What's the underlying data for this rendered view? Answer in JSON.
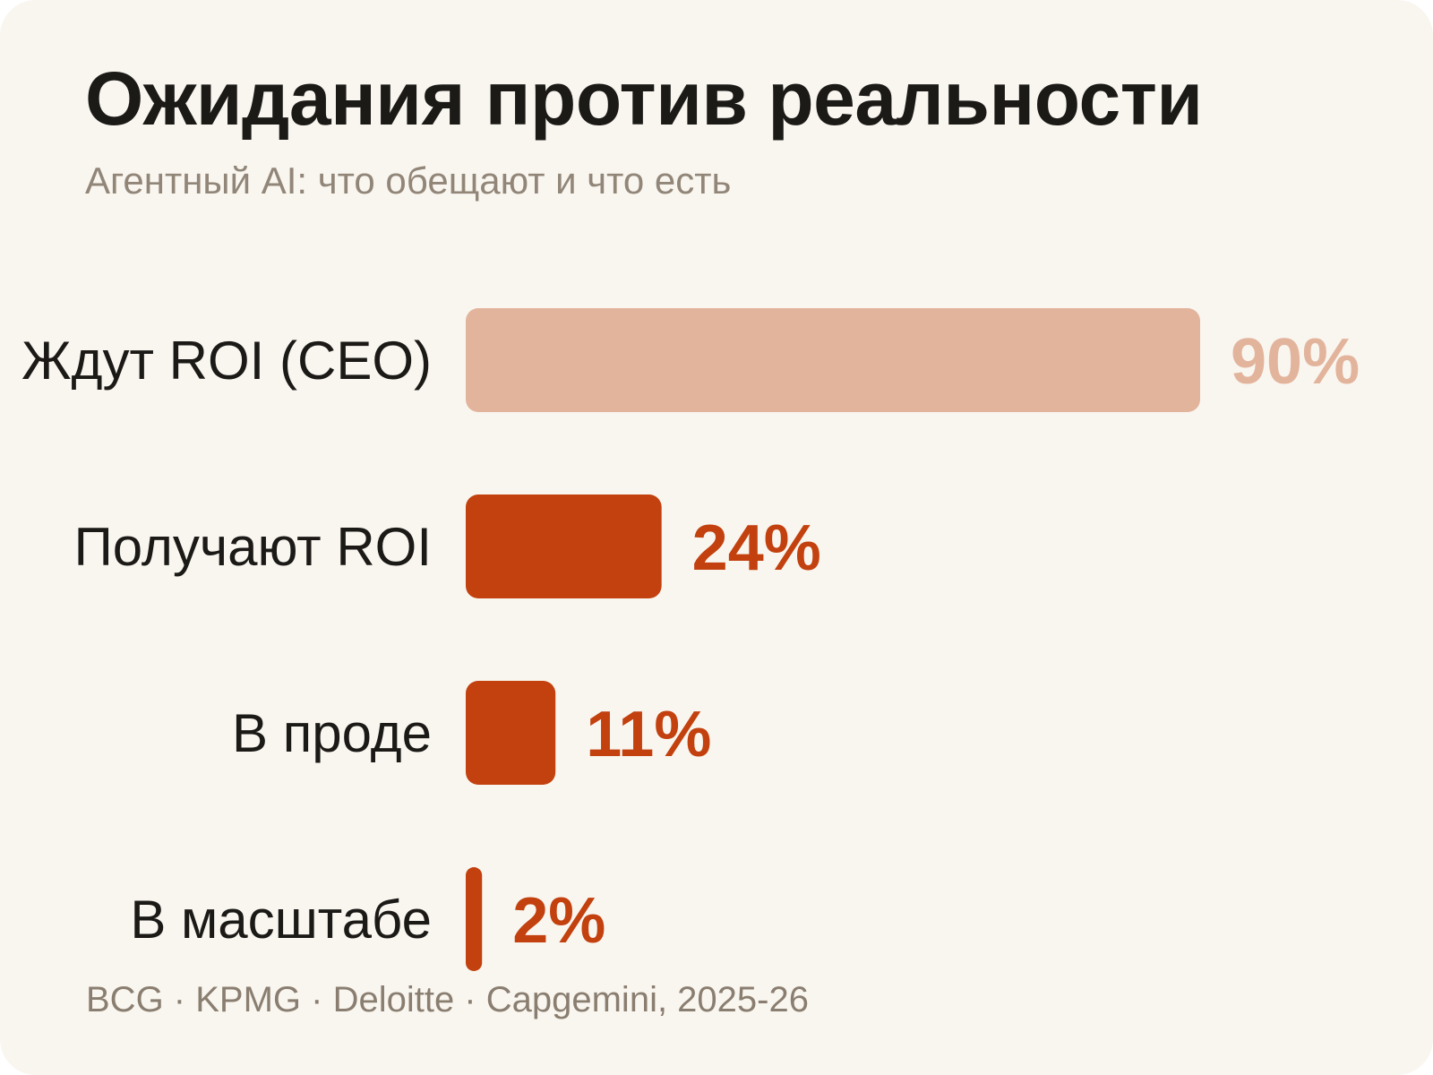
{
  "header": {
    "title": "Ожидания против реальности",
    "subtitle": "Агентный AI: что обещают и что есть"
  },
  "footer": {
    "source": "BCG · KPMG · Deloitte · Capgemini, 2025-26"
  },
  "colors": {
    "expectation": "#e3b49c",
    "reality": "#c2410e",
    "background": "#f9f6f0"
  },
  "chart_data": {
    "type": "bar",
    "orientation": "horizontal",
    "categories": [
      "Ждут ROI (CEO)",
      "Получают ROI",
      "В проде",
      "В масштабе"
    ],
    "values": [
      90,
      24,
      11,
      2
    ],
    "value_labels": [
      "90%",
      "24%",
      "11%",
      "2%"
    ],
    "unit": "%",
    "xlim": [
      0,
      90
    ],
    "grid": false,
    "bar_colors": [
      "#e3b49c",
      "#c2410e",
      "#c2410e",
      "#c2410e"
    ]
  }
}
